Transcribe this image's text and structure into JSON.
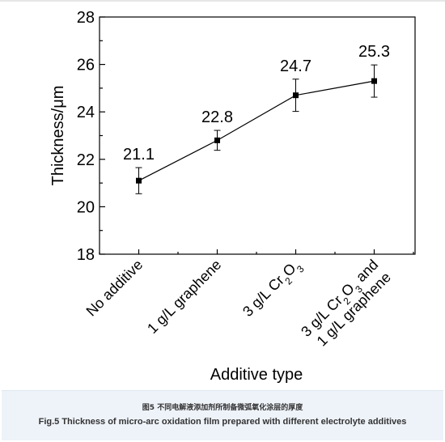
{
  "caption": {
    "cn": "图5 不同电解液添加剂所制备微弧氧化涂层的厚度",
    "en": "Fig.5 Thickness of micro-arc oxidation film prepared with different electrolyte additives"
  },
  "chart_data": {
    "type": "line",
    "xlabel": "Additive type",
    "ylabel": "Thickness/μm",
    "ylim": [
      18,
      28
    ],
    "yticks": [
      18,
      20,
      22,
      24,
      26,
      28
    ],
    "categories": [
      [
        "No additive"
      ],
      [
        "1 g/L graphene"
      ],
      [
        [
          "3 g/L Cr",
          ""
        ],
        [
          "2",
          "sub"
        ],
        [
          "O",
          ""
        ],
        [
          "3",
          "sub"
        ]
      ],
      [
        [
          [
            "3 g/L Cr",
            ""
          ],
          [
            "2",
            "sub"
          ],
          [
            "O",
            ""
          ],
          [
            "3",
            "sub"
          ],
          [
            " and",
            ""
          ]
        ],
        [
          [
            "1 g/L graphene",
            ""
          ]
        ]
      ]
    ],
    "series": [
      {
        "values": [
          21.1,
          22.8,
          24.7,
          25.3
        ],
        "error": [
          0.55,
          0.42,
          0.68,
          0.68
        ],
        "labels": [
          "21.1",
          "22.8",
          "24.7",
          "25.3"
        ]
      }
    ],
    "grid": false,
    "marker": "square",
    "line_color": "#000000"
  }
}
